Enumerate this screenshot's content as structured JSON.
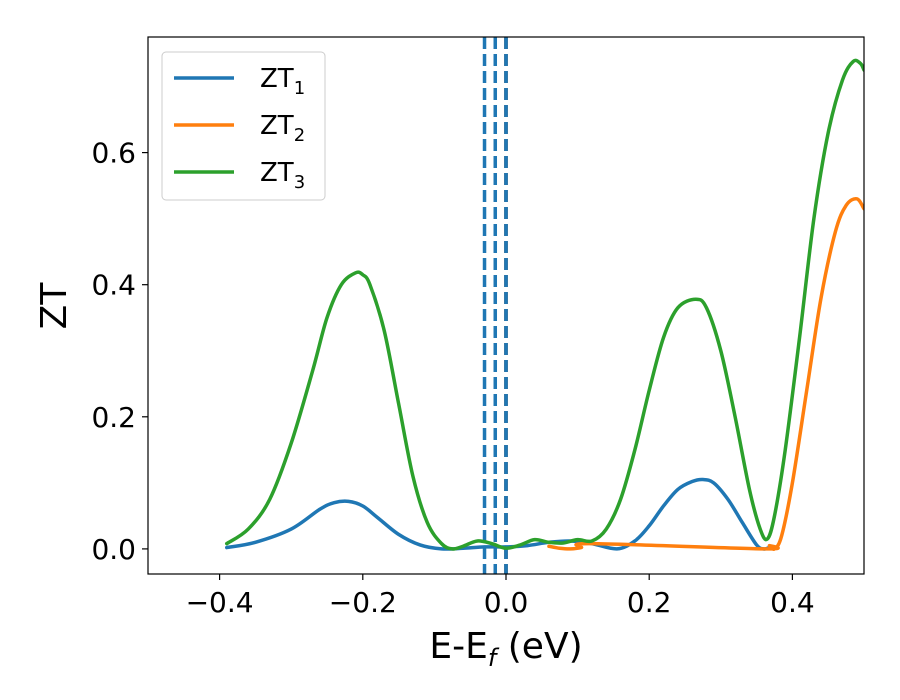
{
  "chart_data": {
    "type": "line",
    "xlabel": "E-E",
    "xlabel_sub": "f",
    "xlabel_unit": " (eV)",
    "ylabel": "ZT",
    "xlim": [
      -0.5,
      0.5
    ],
    "ylim": [
      -0.038,
      0.775
    ],
    "xticks": [
      -0.4,
      -0.2,
      0.0,
      0.2,
      0.4
    ],
    "xtick_labels": [
      "−0.4",
      "−0.2",
      "0.0",
      "0.2",
      "0.4"
    ],
    "yticks": [
      0.0,
      0.2,
      0.4,
      0.6
    ],
    "ytick_labels": [
      "0.0",
      "0.2",
      "0.4",
      "0.6"
    ],
    "legend_position": "top-left",
    "vlines": [
      {
        "x": -0.03,
        "style": "dashed",
        "color": "#1f77b4"
      },
      {
        "x": -0.015,
        "style": "dashed",
        "color": "#1f77b4"
      },
      {
        "x": 0.0,
        "style": "dashed",
        "color": "#000000"
      },
      {
        "x": 0.0,
        "style": "dashed",
        "color": "#1f77b4"
      }
    ],
    "series": [
      {
        "name": "ZT",
        "name_sub": "1",
        "color": "#1f77b4",
        "x": [
          -0.39,
          -0.35,
          -0.3,
          -0.26,
          -0.24,
          -0.22,
          -0.2,
          -0.18,
          -0.15,
          -0.12,
          -0.09,
          -0.06,
          -0.03,
          0.0,
          0.03,
          0.06,
          0.09,
          0.12,
          0.155,
          0.18,
          0.2,
          0.22,
          0.24,
          0.26,
          0.275,
          0.29,
          0.31,
          0.33,
          0.35,
          0.36,
          0.368,
          0.375
        ],
        "y": [
          0.002,
          0.01,
          0.03,
          0.06,
          0.07,
          0.072,
          0.065,
          0.048,
          0.022,
          0.006,
          0.0,
          0.001,
          0.003,
          0.003,
          0.005,
          0.01,
          0.012,
          0.008,
          0.0,
          0.012,
          0.035,
          0.065,
          0.09,
          0.102,
          0.105,
          0.1,
          0.075,
          0.04,
          0.006,
          0.0,
          0.002,
          0.002
        ]
      },
      {
        "name": "ZT",
        "name_sub": "2",
        "color": "#ff7f0e",
        "x": [
          0.06,
          0.075,
          0.09,
          0.105,
          0.12,
          0.36,
          0.368,
          0.375,
          0.385,
          0.4,
          0.42,
          0.44,
          0.46,
          0.475,
          0.49,
          0.5
        ],
        "y": [
          0.004,
          0.001,
          0.0,
          0.002,
          0.008,
          0.0,
          0.005,
          0.0,
          0.02,
          0.1,
          0.24,
          0.38,
          0.48,
          0.52,
          0.53,
          0.515
        ]
      },
      {
        "name": "ZT",
        "name_sub": "3",
        "color": "#2ca02c",
        "x": [
          -0.39,
          -0.36,
          -0.33,
          -0.3,
          -0.27,
          -0.25,
          -0.23,
          -0.21,
          -0.2,
          -0.19,
          -0.17,
          -0.15,
          -0.13,
          -0.11,
          -0.09,
          -0.075,
          -0.06,
          -0.04,
          -0.02,
          0.0,
          0.02,
          0.04,
          0.06,
          0.08,
          0.1,
          0.12,
          0.14,
          0.16,
          0.18,
          0.2,
          0.22,
          0.24,
          0.265,
          0.28,
          0.3,
          0.32,
          0.34,
          0.355,
          0.365,
          0.375,
          0.39,
          0.41,
          0.43,
          0.45,
          0.47,
          0.485,
          0.495,
          0.5
        ],
        "y": [
          0.008,
          0.03,
          0.075,
          0.16,
          0.27,
          0.35,
          0.4,
          0.418,
          0.415,
          0.4,
          0.33,
          0.22,
          0.11,
          0.04,
          0.008,
          0.0,
          0.004,
          0.012,
          0.008,
          0.001,
          0.006,
          0.014,
          0.01,
          0.009,
          0.014,
          0.012,
          0.03,
          0.075,
          0.15,
          0.24,
          0.32,
          0.365,
          0.378,
          0.365,
          0.3,
          0.2,
          0.09,
          0.03,
          0.015,
          0.05,
          0.15,
          0.32,
          0.5,
          0.63,
          0.71,
          0.738,
          0.735,
          0.725
        ]
      }
    ]
  }
}
